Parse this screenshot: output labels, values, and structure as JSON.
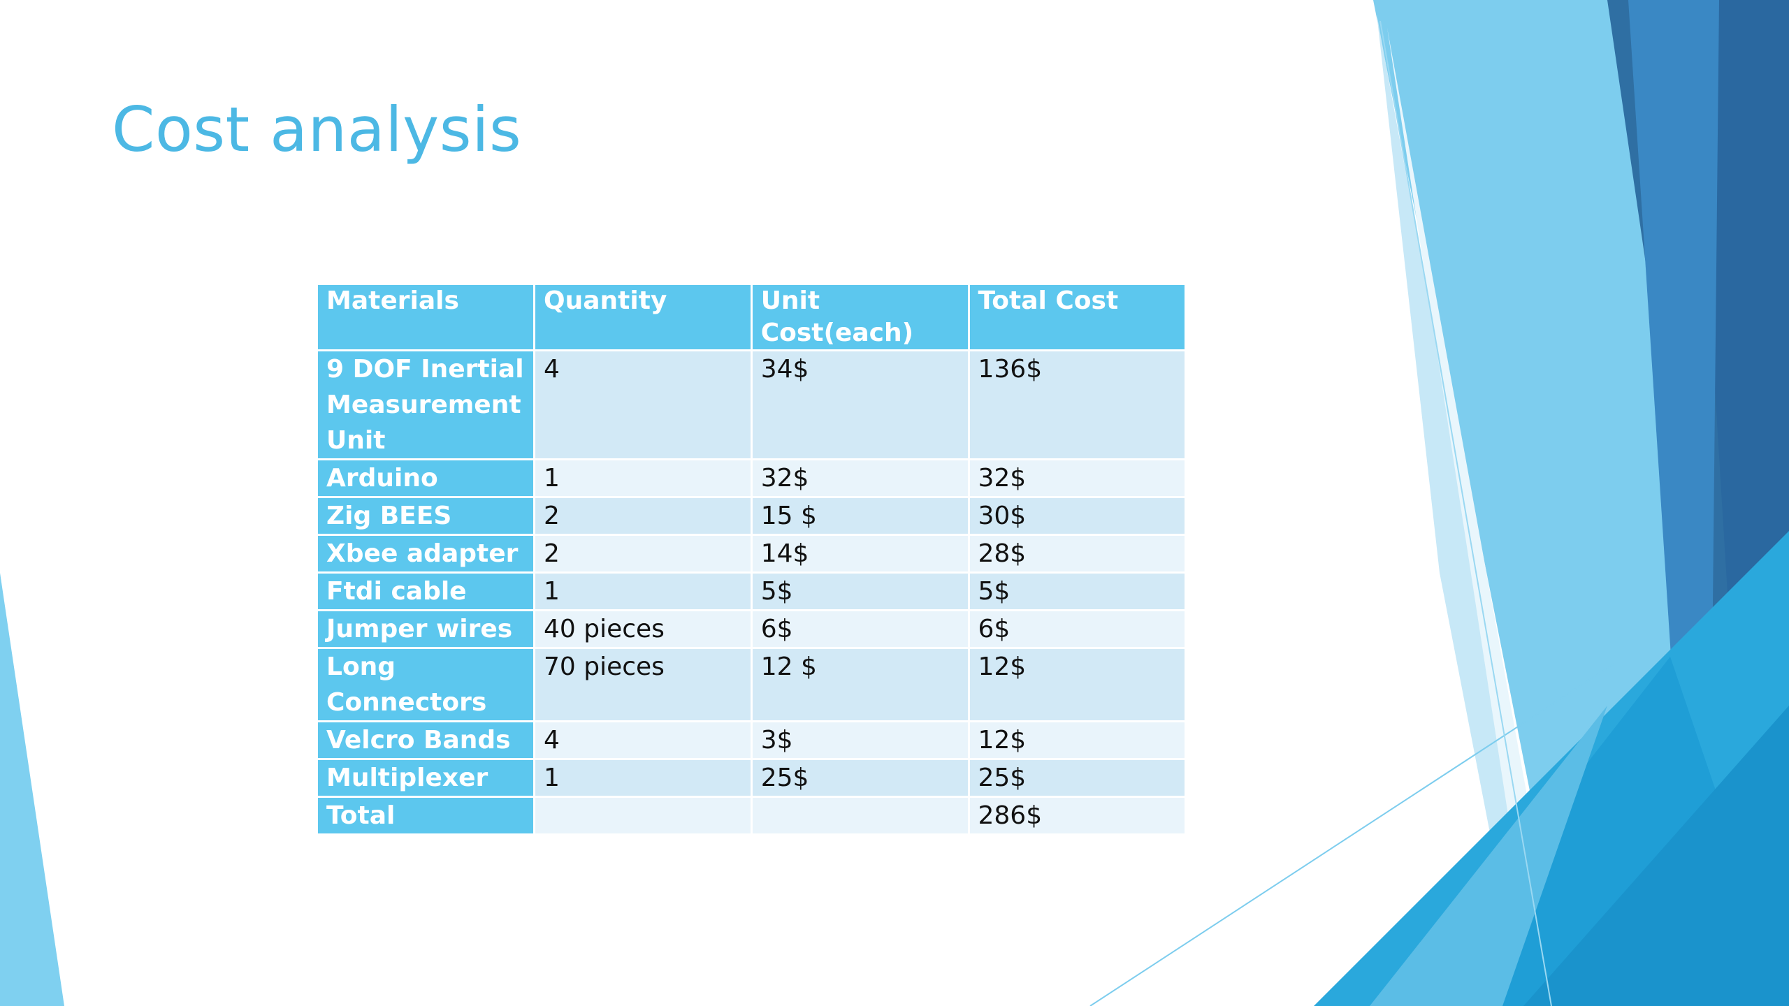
{
  "slide": {
    "title": "Cost analysis"
  },
  "table": {
    "headers": [
      "Materials",
      "Quantity",
      "Unit Cost(each)",
      "Total Cost"
    ],
    "rows": [
      [
        "9 DOF Inertial Measurement Unit",
        "4",
        "34$",
        "136$"
      ],
      [
        "Arduino",
        "1",
        "32$",
        "32$"
      ],
      [
        "Zig BEES",
        "2",
        "15 $",
        "30$"
      ],
      [
        "Xbee adapter",
        "2",
        "14$",
        "28$"
      ],
      [
        "Ftdi cable",
        "1",
        "5$",
        "5$"
      ],
      [
        "Jumper wires",
        "40 pieces",
        "6$",
        "6$"
      ],
      [
        "Long Connectors",
        "70 pieces",
        "12 $",
        "12$"
      ],
      [
        "Velcro Bands",
        "4",
        "3$",
        "12$"
      ],
      [
        "Multiplexer",
        "1",
        "25$",
        "25$"
      ],
      [
        "Total",
        "",
        "",
        "286$"
      ]
    ]
  },
  "colors": {
    "title": "#4cb8e4",
    "header_fill": "#5cc7ee",
    "row_fill_dark": "#d2e9f6",
    "row_fill_light": "#e9f4fb"
  }
}
